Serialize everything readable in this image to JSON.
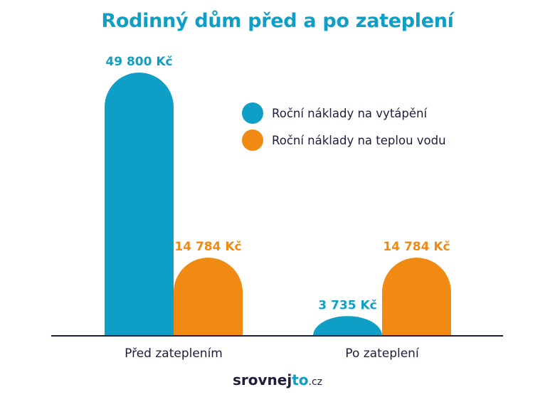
{
  "chart_data": {
    "type": "bar",
    "title": "Rodinný dům před a po zateplení",
    "categories": [
      "Před zateplením",
      "Po zateplení"
    ],
    "series": [
      {
        "name": "Roční náklady na vytápění",
        "values": [
          49800,
          3735
        ],
        "labels": [
          "49 800 Kč",
          "3 735 Kč"
        ],
        "color": "#0f9fc6"
      },
      {
        "name": "Roční náklady na teplou vodu",
        "values": [
          14784,
          14784
        ],
        "labels": [
          "14 784 Kč",
          "14 784 Kč"
        ],
        "color": "#f08a12"
      }
    ],
    "ylim": [
      0,
      49800
    ],
    "grid": false,
    "legend_position": "top-right"
  },
  "logo": {
    "brand": "srovnej",
    "accent": "to",
    "tld": ".cz"
  }
}
